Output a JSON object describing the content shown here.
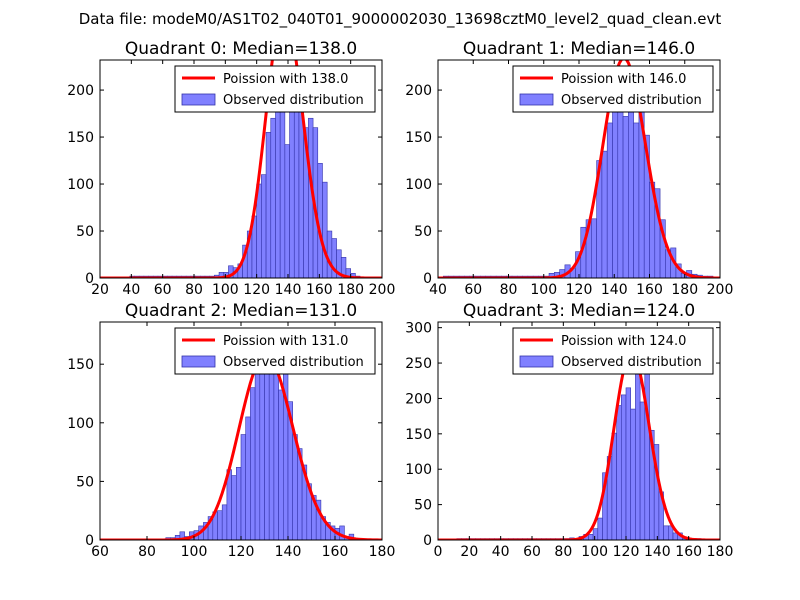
{
  "figure": {
    "suptitle": "Data file: modeM0/AS1T02_040T01_9000002030_13698cztM0_level2_quad_clean.evt"
  },
  "colors": {
    "bar_fill": "#8080ff",
    "bar_edge": "#3333aa",
    "poisson_line": "#ff0000",
    "axes_edge": "#000000"
  },
  "chart_data": [
    {
      "type": "bar",
      "quadrant": 0,
      "title": "Quadrant 0: Median=138.0",
      "median": 138.0,
      "xlim": [
        20,
        200
      ],
      "ylim": [
        0,
        232
      ],
      "xticks": [
        20,
        40,
        60,
        80,
        100,
        120,
        140,
        160,
        180,
        200
      ],
      "yticks": [
        0,
        50,
        100,
        150,
        200
      ],
      "bin_width": 3,
      "bins": [
        [
          39,
          2
        ],
        [
          42,
          2
        ],
        [
          45,
          2
        ],
        [
          48,
          2
        ],
        [
          51,
          2
        ],
        [
          54,
          2
        ],
        [
          57,
          2
        ],
        [
          60,
          2
        ],
        [
          63,
          2
        ],
        [
          66,
          2
        ],
        [
          69,
          2
        ],
        [
          72,
          2
        ],
        [
          75,
          2
        ],
        [
          78,
          2
        ],
        [
          81,
          2
        ],
        [
          84,
          2
        ],
        [
          87,
          2
        ],
        [
          90,
          2
        ],
        [
          93,
          3
        ],
        [
          96,
          6
        ],
        [
          99,
          6
        ],
        [
          102,
          13
        ],
        [
          105,
          11
        ],
        [
          108,
          15
        ],
        [
          111,
          35
        ],
        [
          114,
          50
        ],
        [
          117,
          66
        ],
        [
          120,
          100
        ],
        [
          123,
          110
        ],
        [
          126,
          155
        ],
        [
          129,
          170
        ],
        [
          132,
          215
        ],
        [
          135,
          198
        ],
        [
          138,
          142
        ],
        [
          141,
          215
        ],
        [
          144,
          200
        ],
        [
          147,
          180
        ],
        [
          150,
          160
        ],
        [
          153,
          170
        ],
        [
          156,
          160
        ],
        [
          159,
          122
        ],
        [
          162,
          102
        ],
        [
          165,
          50
        ],
        [
          168,
          42
        ],
        [
          171,
          30
        ],
        [
          174,
          22
        ],
        [
          177,
          10
        ],
        [
          180,
          5
        ],
        [
          183,
          2
        ]
      ],
      "legend": {
        "position": "top-right",
        "line_label": "Poission with 138.0",
        "bar_label": "Observed distribution"
      }
    },
    {
      "type": "bar",
      "quadrant": 1,
      "title": "Quadrant 1: Median=146.0",
      "median": 146.0,
      "xlim": [
        40,
        200
      ],
      "ylim": [
        0,
        232
      ],
      "xticks": [
        40,
        60,
        80,
        100,
        120,
        140,
        160,
        180,
        200
      ],
      "yticks": [
        0,
        50,
        100,
        150,
        200
      ],
      "bin_width": 3,
      "bins": [
        [
          43,
          2
        ],
        [
          46,
          2
        ],
        [
          49,
          2
        ],
        [
          52,
          2
        ],
        [
          55,
          2
        ],
        [
          58,
          2
        ],
        [
          61,
          2
        ],
        [
          64,
          2
        ],
        [
          67,
          2
        ],
        [
          70,
          2
        ],
        [
          73,
          2
        ],
        [
          76,
          2
        ],
        [
          79,
          2
        ],
        [
          82,
          2
        ],
        [
          85,
          2
        ],
        [
          88,
          2
        ],
        [
          91,
          2
        ],
        [
          94,
          2
        ],
        [
          97,
          2
        ],
        [
          100,
          2
        ],
        [
          103,
          5
        ],
        [
          106,
          6
        ],
        [
          109,
          9
        ],
        [
          112,
          14
        ],
        [
          115,
          10
        ],
        [
          118,
          28
        ],
        [
          121,
          54
        ],
        [
          124,
          62
        ],
        [
          127,
          63
        ],
        [
          130,
          125
        ],
        [
          133,
          135
        ],
        [
          136,
          165
        ],
        [
          139,
          178
        ],
        [
          142,
          200
        ],
        [
          145,
          172
        ],
        [
          148,
          218
        ],
        [
          151,
          165
        ],
        [
          154,
          200
        ],
        [
          157,
          152
        ],
        [
          160,
          102
        ],
        [
          163,
          95
        ],
        [
          166,
          62
        ],
        [
          169,
          30
        ],
        [
          172,
          32
        ],
        [
          175,
          15
        ],
        [
          178,
          5
        ],
        [
          181,
          8
        ],
        [
          184,
          4
        ],
        [
          187,
          3
        ],
        [
          190,
          2
        ],
        [
          193,
          2
        ]
      ],
      "legend": {
        "position": "top-right",
        "line_label": "Poission with 146.0",
        "bar_label": "Observed distribution"
      }
    },
    {
      "type": "bar",
      "quadrant": 2,
      "title": "Quadrant 2: Median=131.0",
      "median": 131.0,
      "xlim": [
        60,
        180
      ],
      "ylim": [
        0,
        186
      ],
      "xticks": [
        60,
        80,
        100,
        120,
        140,
        160,
        180
      ],
      "yticks": [
        0,
        50,
        100,
        150
      ],
      "bin_width": 2,
      "bins": [
        [
          80,
          1
        ],
        [
          82,
          1
        ],
        [
          84,
          1
        ],
        [
          86,
          1
        ],
        [
          88,
          2
        ],
        [
          90,
          2
        ],
        [
          92,
          4
        ],
        [
          94,
          7
        ],
        [
          96,
          3
        ],
        [
          98,
          7
        ],
        [
          100,
          8
        ],
        [
          102,
          12
        ],
        [
          104,
          15
        ],
        [
          106,
          20
        ],
        [
          108,
          24
        ],
        [
          110,
          25
        ],
        [
          112,
          30
        ],
        [
          114,
          60
        ],
        [
          116,
          55
        ],
        [
          118,
          62
        ],
        [
          120,
          90
        ],
        [
          122,
          105
        ],
        [
          124,
          130
        ],
        [
          126,
          148
        ],
        [
          128,
          160
        ],
        [
          130,
          162
        ],
        [
          132,
          160
        ],
        [
          134,
          145
        ],
        [
          136,
          128
        ],
        [
          138,
          148
        ],
        [
          140,
          118
        ],
        [
          142,
          90
        ],
        [
          144,
          78
        ],
        [
          146,
          64
        ],
        [
          148,
          48
        ],
        [
          150,
          38
        ],
        [
          152,
          34
        ],
        [
          154,
          20
        ],
        [
          156,
          15
        ],
        [
          158,
          12
        ],
        [
          160,
          10
        ],
        [
          162,
          12
        ],
        [
          164,
          3
        ],
        [
          166,
          5
        ],
        [
          168,
          1
        ]
      ],
      "legend": {
        "position": "top-right",
        "line_label": "Poission with 131.0",
        "bar_label": "Observed distribution"
      }
    },
    {
      "type": "bar",
      "quadrant": 3,
      "title": "Quadrant 3: Median=124.0",
      "median": 124.0,
      "xlim": [
        0,
        180
      ],
      "ylim": [
        0,
        308
      ],
      "xticks": [
        0,
        20,
        40,
        60,
        80,
        100,
        120,
        140,
        160,
        180
      ],
      "yticks": [
        0,
        50,
        100,
        150,
        200,
        250,
        300
      ],
      "bin_width": 3,
      "bins": [
        [
          12,
          2
        ],
        [
          15,
          2
        ],
        [
          18,
          2
        ],
        [
          21,
          2
        ],
        [
          24,
          2
        ],
        [
          27,
          2
        ],
        [
          30,
          2
        ],
        [
          33,
          2
        ],
        [
          36,
          2
        ],
        [
          39,
          2
        ],
        [
          42,
          2
        ],
        [
          45,
          2
        ],
        [
          48,
          2
        ],
        [
          51,
          2
        ],
        [
          54,
          2
        ],
        [
          57,
          2
        ],
        [
          60,
          2
        ],
        [
          63,
          2
        ],
        [
          66,
          2
        ],
        [
          69,
          2
        ],
        [
          72,
          2
        ],
        [
          75,
          2
        ],
        [
          78,
          2
        ],
        [
          81,
          2
        ],
        [
          84,
          3
        ],
        [
          87,
          2
        ],
        [
          90,
          5
        ],
        [
          93,
          8
        ],
        [
          96,
          8
        ],
        [
          99,
          16
        ],
        [
          102,
          31
        ],
        [
          105,
          95
        ],
        [
          108,
          118
        ],
        [
          111,
          151
        ],
        [
          114,
          190
        ],
        [
          117,
          205
        ],
        [
          120,
          215
        ],
        [
          123,
          185
        ],
        [
          126,
          285
        ],
        [
          129,
          195
        ],
        [
          132,
          285
        ],
        [
          135,
          155
        ],
        [
          138,
          135
        ],
        [
          141,
          68
        ],
        [
          144,
          20
        ],
        [
          147,
          20
        ],
        [
          150,
          10
        ],
        [
          153,
          10
        ],
        [
          156,
          2
        ],
        [
          159,
          2
        ],
        [
          162,
          2
        ],
        [
          165,
          2
        ]
      ],
      "legend": {
        "position": "top-right",
        "line_label": "Poission with 124.0",
        "bar_label": "Observed distribution"
      }
    }
  ]
}
